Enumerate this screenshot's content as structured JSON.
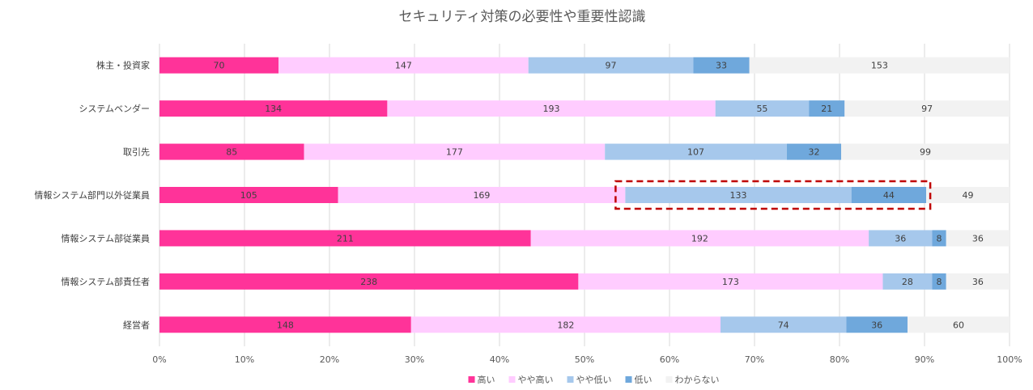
{
  "chart_data": {
    "type": "bar",
    "orientation": "horizontal",
    "stacked": "percent",
    "title": "セキュリティ対策の必要性や重要性認識",
    "categories": [
      "株主・投資家",
      "システムベンダー",
      "取引先",
      "情報システム部門以外従業員",
      "情報システム部従業員",
      "情報システム部責任者",
      "経営者"
    ],
    "series": [
      {
        "name": "高い",
        "color": "#ff3399",
        "values": [
          70,
          134,
          85,
          105,
          211,
          238,
          148
        ]
      },
      {
        "name": "やや高い",
        "color": "#ffccff",
        "values": [
          147,
          193,
          177,
          169,
          192,
          173,
          182
        ]
      },
      {
        "name": "やや低い",
        "color": "#a6c8ec",
        "values": [
          97,
          55,
          107,
          133,
          36,
          28,
          74
        ]
      },
      {
        "name": "低い",
        "color": "#6fa8dc",
        "values": [
          33,
          21,
          32,
          44,
          8,
          8,
          36
        ]
      },
      {
        "name": "わからない",
        "color": "#f2f2f2",
        "values": [
          153,
          97,
          99,
          49,
          36,
          36,
          60
        ]
      }
    ],
    "xlim": [
      0,
      100
    ],
    "x_ticks": [
      "0%",
      "10%",
      "20%",
      "30%",
      "40%",
      "50%",
      "60%",
      "70%",
      "80%",
      "90%",
      "100%"
    ],
    "grid": true,
    "legend_position": "bottom",
    "highlight": {
      "category": "情報システム部門以外従業員",
      "series": [
        "やや低い",
        "低い"
      ],
      "color": "#c00000",
      "style": "dashed"
    }
  }
}
